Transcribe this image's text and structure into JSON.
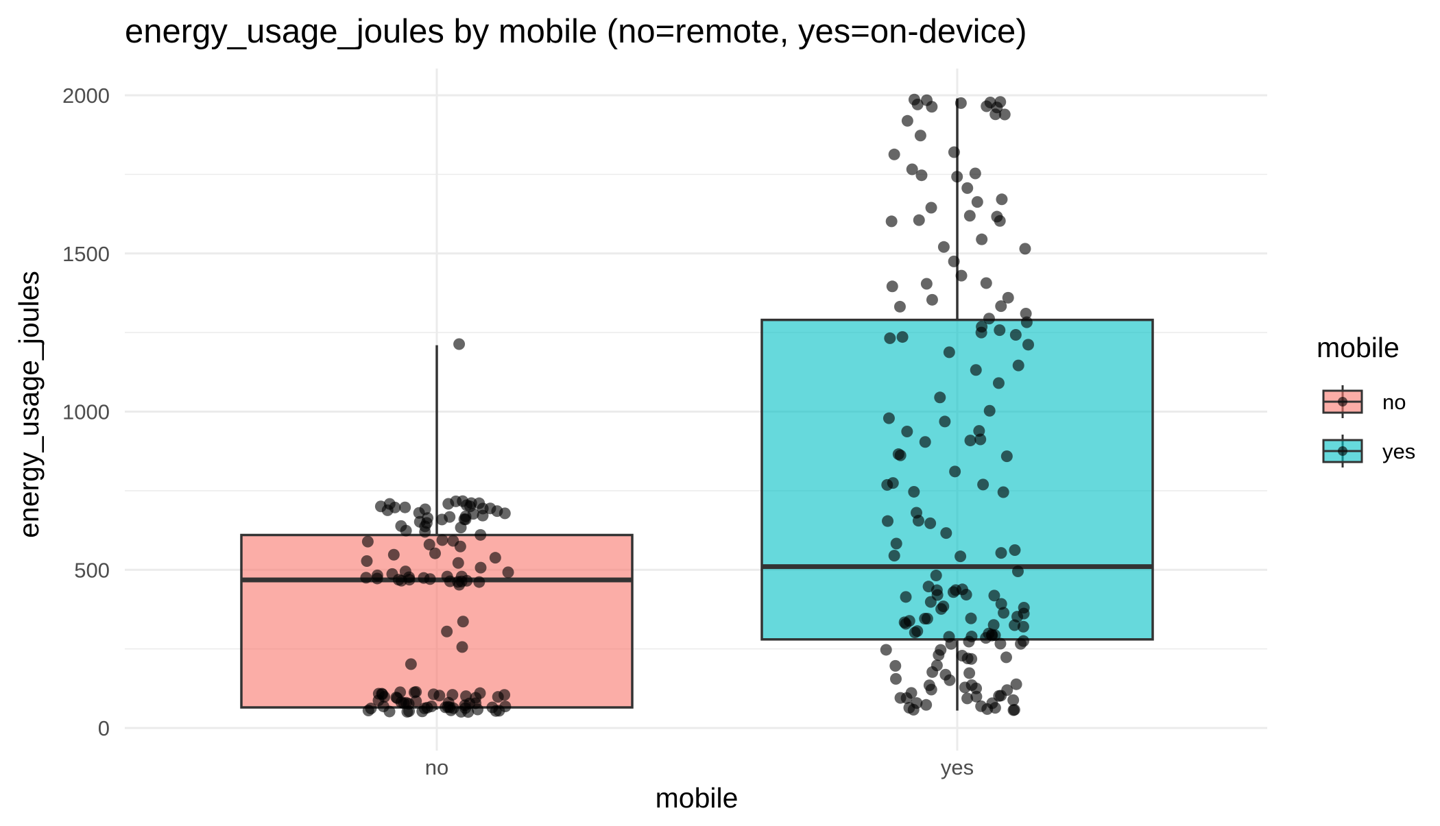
{
  "chart_data": {
    "type": "box",
    "title": "energy_usage_joules by mobile (no=remote, yes=on-device)",
    "xlabel": "mobile",
    "ylabel": "energy_usage_joules",
    "categories": [
      "no",
      "yes"
    ],
    "ylim": [
      0,
      2100
    ],
    "yticks": [
      0,
      500,
      1000,
      1500,
      2000
    ],
    "grid": true,
    "legend": {
      "title": "mobile",
      "position": "right",
      "entries": [
        {
          "label": "no",
          "color": "#F8766D"
        },
        {
          "label": "yes",
          "color": "#00BFC4"
        }
      ]
    },
    "boxes": [
      {
        "category": "no",
        "q1": 65,
        "median": 468,
        "q3": 610,
        "whisker_low": 58,
        "whisker_high": 1210,
        "color": "#F8766D"
      },
      {
        "category": "yes",
        "q1": 280,
        "median": 510,
        "q3": 1290,
        "whisker_low": 55,
        "whisker_high": 1990,
        "color": "#00BFC4"
      }
    ],
    "points": [
      {
        "category": "no",
        "values": [
          1210,
          725,
          720,
          715,
          710,
          708,
          705,
          704,
          702,
          700,
          700,
          698,
          695,
          692,
          690,
          688,
          685,
          680,
          678,
          672,
          670,
          668,
          665,
          662,
          660,
          658,
          655,
          650,
          645,
          640,
          632,
          625,
          620,
          615,
          610,
          600,
          595,
          590,
          580,
          570,
          560,
          548,
          540,
          530,
          520,
          510,
          500,
          492,
          488,
          485,
          482,
          480,
          478,
          476,
          475,
          474,
          473,
          472,
          471,
          470,
          470,
          468,
          466,
          465,
          463,
          460,
          330,
          300,
          255,
          205,
          112,
          110,
          109,
          108,
          108,
          107,
          106,
          105,
          104,
          103,
          102,
          100,
          99,
          98,
          96,
          95,
          94,
          93,
          90,
          88,
          85,
          82,
          80,
          78,
          75,
          72,
          70,
          68,
          66,
          65,
          64,
          63,
          62,
          62,
          61,
          61,
          60,
          60,
          60,
          60,
          59,
          59,
          59,
          58,
          58,
          58,
          58,
          58,
          58,
          58
        ]
      },
      {
        "category": "yes",
        "values": [
          1990,
          1985,
          1982,
          1980,
          1978,
          1975,
          1970,
          1965,
          1960,
          1945,
          1935,
          1912,
          1870,
          1820,
          1810,
          1760,
          1758,
          1752,
          1745,
          1700,
          1670,
          1665,
          1638,
          1620,
          1615,
          1610,
          1608,
          1600,
          1552,
          1520,
          1518,
          1478,
          1430,
          1410,
          1400,
          1390,
          1360,
          1345,
          1340,
          1335,
          1315,
          1300,
          1285,
          1262,
          1255,
          1250,
          1242,
          1235,
          1230,
          1210,
          1180,
          1145,
          1140,
          1095,
          1040,
          995,
          985,
          975,
          935,
          930,
          910,
          905,
          900,
          860,
          858,
          852,
          818,
          778,
          768,
          762,
          750,
          748,
          680,
          660,
          650,
          645,
          615,
          575,
          555,
          550,
          548,
          540,
          500,
          490,
          440,
          438,
          435,
          432,
          430,
          428,
          425,
          420,
          415,
          398,
          392,
          390,
          380,
          375,
          365,
          360,
          355,
          350,
          345,
          340,
          338,
          335,
          330,
          322,
          320,
          318,
          305,
          300,
          298,
          295,
          292,
          290,
          288,
          285,
          280,
          275,
          272,
          270,
          265,
          260,
          245,
          240,
          230,
          225,
          220,
          215,
          210,
          195,
          190,
          185,
          180,
          175,
          160,
          150,
          140,
          135,
          130,
          125,
          120,
          118,
          115,
          112,
          108,
          105,
          100,
          98,
          95,
          92,
          90,
          85,
          80,
          75,
          70,
          65,
          60,
          58,
          55,
          55,
          55
        ]
      }
    ]
  }
}
